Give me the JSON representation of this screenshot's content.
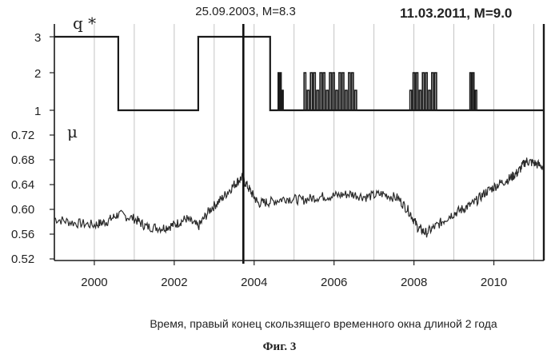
{
  "figure": {
    "xlabel": "Время, правый конец скользящего временного окна длиной 2 года",
    "fig_label": "Фиг. 3"
  },
  "chart_data": [
    {
      "type": "line",
      "panel": "top",
      "ylabel": "q *",
      "yticks": [
        "3",
        "2",
        "1"
      ],
      "ylim": [
        1,
        3
      ],
      "xlim": [
        1999.0,
        2011.25
      ],
      "annotations": [
        {
          "text": "25.09.2003, M=8.3",
          "x": 2003.73
        },
        {
          "text": "11.03.2011, M=9.0",
          "x": 2011.19
        }
      ],
      "series": [
        {
          "x": [
            1999.0,
            2000.6,
            2000.6,
            2002.6,
            2002.6,
            2004.4,
            2004.4,
            2011.25
          ],
          "y": [
            3,
            3,
            1,
            1,
            3,
            3,
            1,
            1
          ]
        }
      ],
      "regime_switches": [
        {
          "x_start": 2004.6,
          "x_end": 2004.75,
          "low": 1,
          "high": 2
        },
        {
          "x_start": 2005.25,
          "x_end": 2006.6,
          "low": 1,
          "high": 2
        },
        {
          "x_start": 2007.9,
          "x_end": 2008.6,
          "low": 1,
          "high": 2
        },
        {
          "x_start": 2009.4,
          "x_end": 2009.6,
          "low": 1,
          "high": 2
        }
      ]
    },
    {
      "type": "line",
      "panel": "bottom",
      "ylabel": "μ",
      "yticks": [
        "0.72",
        "0.68",
        "0.64",
        "0.60",
        "0.56",
        "0.52"
      ],
      "ylim": [
        0.52,
        0.74
      ],
      "xlim": [
        1999.0,
        2011.25
      ],
      "xticks": [
        "2000",
        "2002",
        "2004",
        "2006",
        "2008",
        "2010"
      ],
      "series": [
        {
          "x": [
            1999.0,
            1999.5,
            2000.0,
            2000.3,
            2000.6,
            2001.0,
            2001.3,
            2001.7,
            2002.0,
            2002.3,
            2002.6,
            2002.9,
            2003.2,
            2003.5,
            2003.7,
            2003.9,
            2004.1,
            2004.4,
            2004.8,
            2005.2,
            2005.6,
            2006.0,
            2006.4,
            2006.8,
            2007.2,
            2007.6,
            2007.9,
            2008.1,
            2008.3,
            2008.6,
            2008.9,
            2009.2,
            2009.5,
            2009.8,
            2010.1,
            2010.4,
            2010.6,
            2010.8,
            2011.0,
            2011.25
          ],
          "y": [
            0.585,
            0.578,
            0.575,
            0.58,
            0.592,
            0.585,
            0.572,
            0.57,
            0.575,
            0.585,
            0.572,
            0.6,
            0.618,
            0.64,
            0.652,
            0.63,
            0.61,
            0.612,
            0.618,
            0.615,
            0.62,
            0.622,
            0.625,
            0.62,
            0.625,
            0.618,
            0.595,
            0.57,
            0.562,
            0.575,
            0.59,
            0.6,
            0.61,
            0.628,
            0.64,
            0.65,
            0.66,
            0.678,
            0.675,
            0.668
          ]
        }
      ]
    }
  ]
}
